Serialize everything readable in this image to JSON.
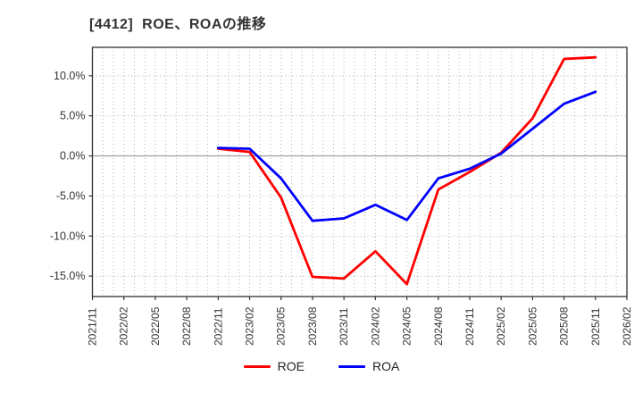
{
  "title": "[4412]  ROE、ROAの推移",
  "chart_data": {
    "type": "line",
    "title": "[4412]  ROE、ROAの推移",
    "xlabel": "",
    "ylabel": "",
    "x_ticks": [
      "2021/11",
      "2022/02",
      "2022/05",
      "2022/08",
      "2022/11",
      "2023/02",
      "2023/05",
      "2023/08",
      "2023/11",
      "2024/02",
      "2024/05",
      "2024/08",
      "2024/11",
      "2025/02",
      "2025/05",
      "2025/08",
      "2025/11",
      "2026/02"
    ],
    "y_ticks": [
      10,
      5,
      0,
      -5,
      -10,
      -15
    ],
    "y_tick_labels": [
      "10.0%",
      "5.0%",
      "0.0%",
      "-5.0%",
      "-10.0%",
      "-15.0%"
    ],
    "ylim": [
      -17.55,
      13.55
    ],
    "grid": "dotted gray, monthly vertical, 5% horizontal, solid zero line",
    "legend_position": "bottom-center",
    "series": [
      {
        "name": "ROE",
        "color": "#ff0000",
        "x": [
          "2022/11",
          "2023/02",
          "2023/05",
          "2023/08",
          "2023/11",
          "2024/02",
          "2024/05",
          "2024/08",
          "2024/11",
          "2025/02",
          "2025/05",
          "2025/08",
          "2025/11"
        ],
        "values": [
          0.9,
          0.5,
          -5.2,
          -15.1,
          -15.3,
          -11.9,
          -16.0,
          -4.2,
          -2.0,
          0.4,
          4.7,
          12.1,
          12.3
        ]
      },
      {
        "name": "ROA",
        "color": "#0000ff",
        "x": [
          "2022/11",
          "2023/02",
          "2023/05",
          "2023/08",
          "2023/11",
          "2024/02",
          "2024/05",
          "2024/08",
          "2024/11",
          "2025/02",
          "2025/05",
          "2025/08",
          "2025/11"
        ],
        "values": [
          1.0,
          0.9,
          -2.8,
          -8.1,
          -7.8,
          -6.1,
          -8.0,
          -2.8,
          -1.6,
          0.3,
          3.4,
          6.5,
          8.0
        ]
      }
    ]
  },
  "legend": {
    "items": [
      {
        "label": "ROE",
        "color": "#ff0000"
      },
      {
        "label": "ROA",
        "color": "#0000ff"
      }
    ]
  },
  "style": {
    "axis_color": "#333333",
    "grid_color": "#b3b3b3",
    "zero_line_color": "#999999",
    "tick_label_color": "#333333"
  }
}
